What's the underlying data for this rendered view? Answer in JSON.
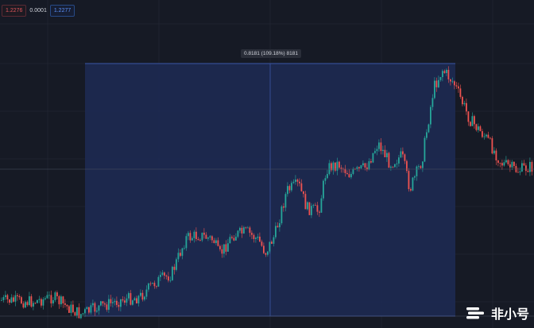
{
  "legend": {
    "left_value": "1.2276",
    "mid_value": "0.0001",
    "right_value": "1.2277"
  },
  "range_measure": {
    "label": "0.8181 (109.18%) 8181"
  },
  "watermark": {
    "text": "非小号",
    "icon": "feixiaohao-logo-icon"
  },
  "colors": {
    "background": "#161a25",
    "up": "#26a69a",
    "down": "#ef5350",
    "selection": "#1d2a52",
    "selection_border": "#3a56a6"
  },
  "chart_data": {
    "type": "candlestick",
    "title": "",
    "xlabel": "",
    "ylabel": "",
    "grid": true,
    "ylim": [
      0,
      1
    ],
    "selection_range_pct": 109.18
  }
}
